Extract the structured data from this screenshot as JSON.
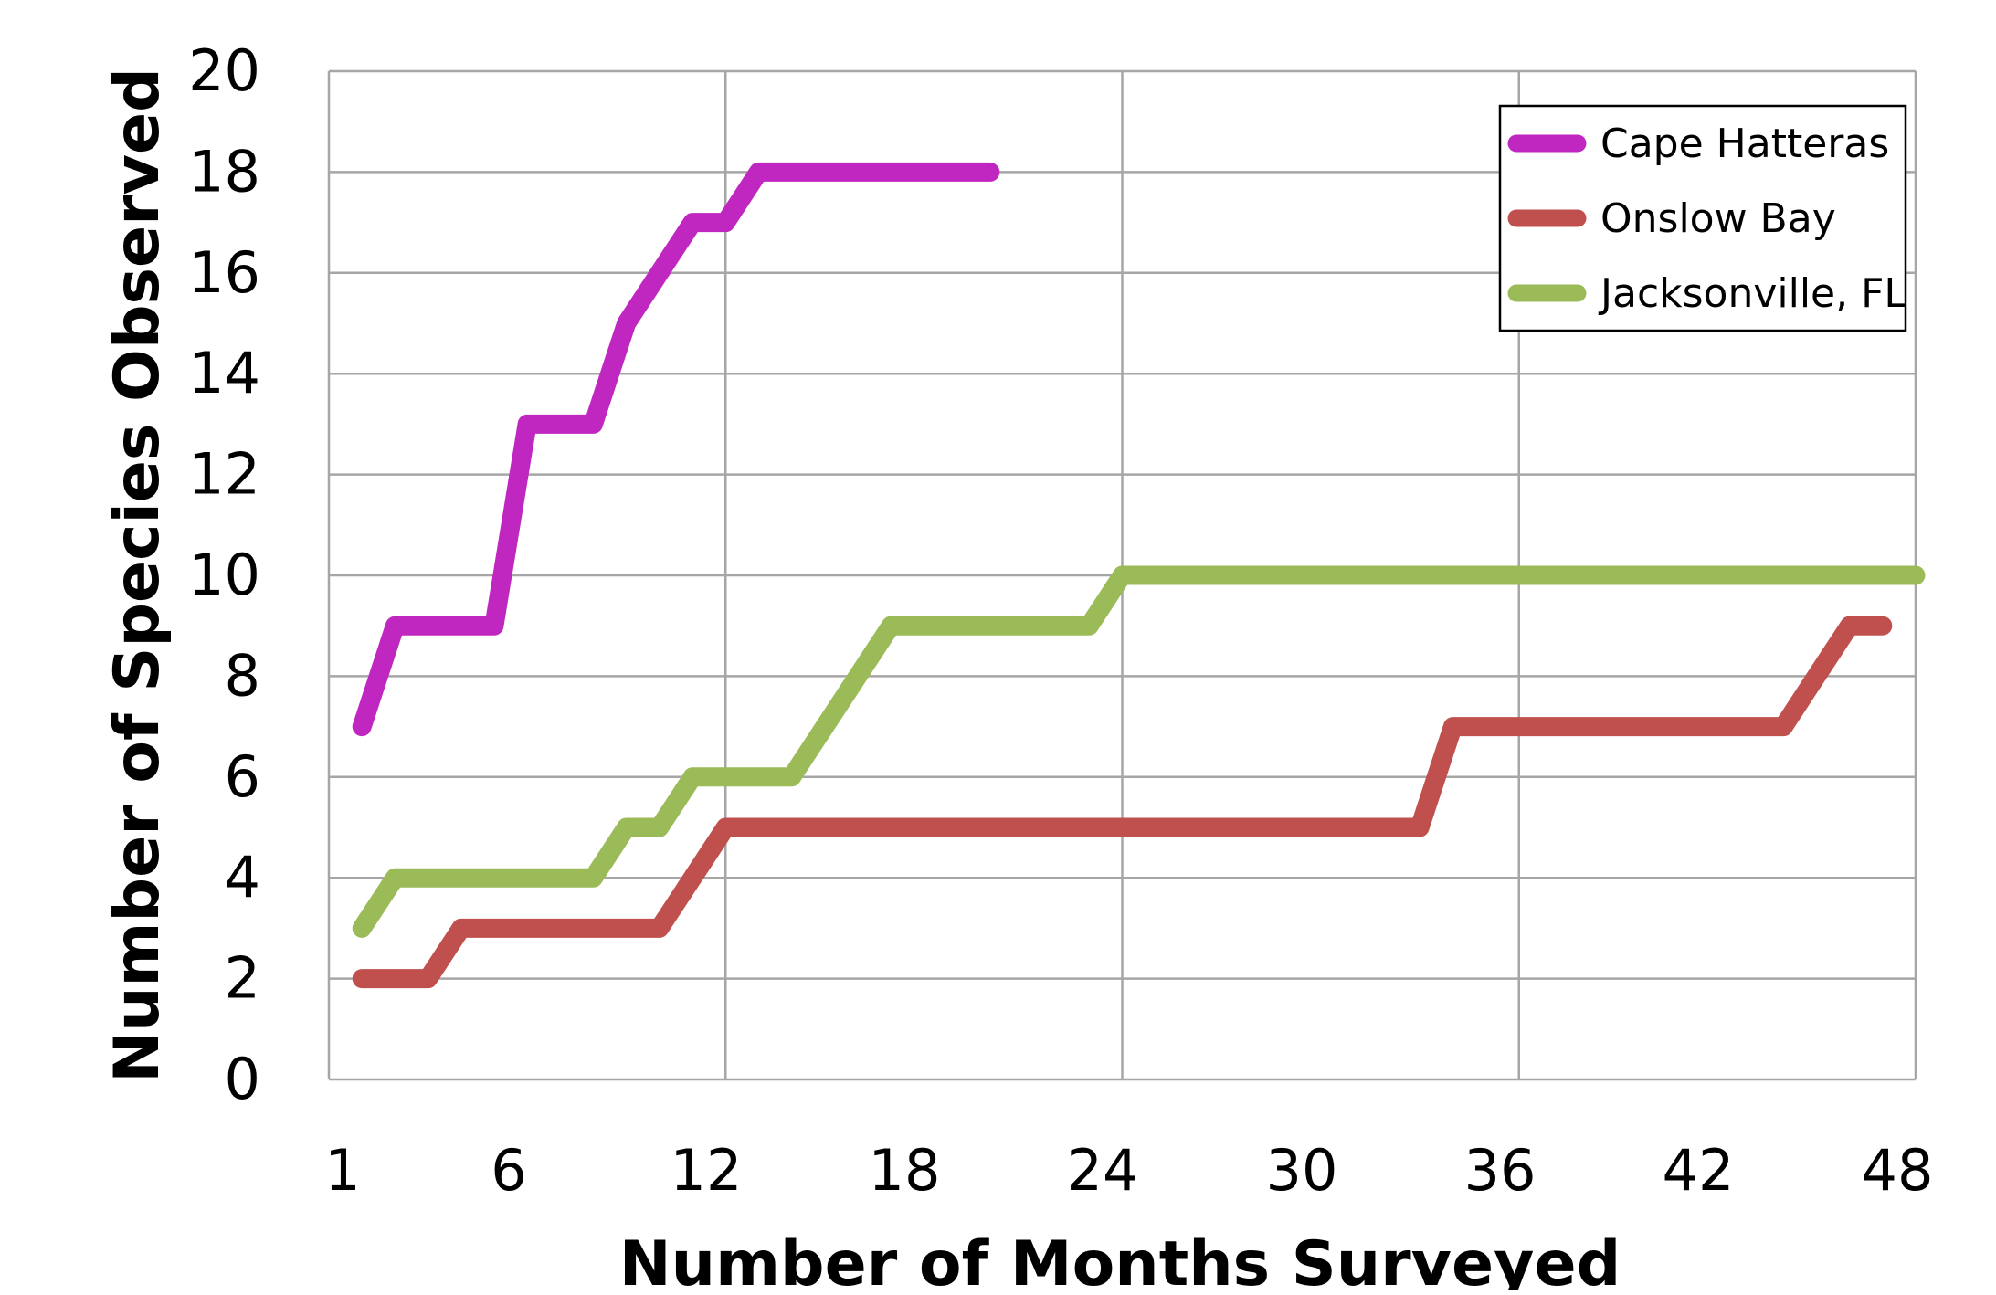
{
  "chart_data": {
    "type": "line",
    "title": "",
    "xlabel": "Number of Months Surveyed",
    "ylabel": "Number of Species Observed",
    "xlim": [
      0,
      48
    ],
    "ylim": [
      0,
      20
    ],
    "x_ticks": [
      1,
      6,
      12,
      18,
      24,
      30,
      36,
      42,
      48
    ],
    "y_ticks": [
      0,
      2,
      4,
      6,
      8,
      10,
      12,
      14,
      16,
      18,
      20
    ],
    "x_tick_labels": [
      "1",
      "6",
      "12",
      "18",
      "24",
      "30",
      "36",
      "42",
      "48"
    ],
    "y_tick_labels": [
      "0",
      "2",
      "4",
      "6",
      "8",
      "10",
      "12",
      "14",
      "16",
      "18",
      "20"
    ],
    "grid": true,
    "legend_position": "top-right",
    "series": [
      {
        "name": "Cape Hatteras",
        "color": "#c026c0",
        "x": [
          1,
          2,
          3,
          4,
          5,
          6,
          7,
          8,
          9,
          10,
          11,
          12,
          13,
          14,
          15,
          16,
          17,
          18,
          19,
          20
        ],
        "y": [
          7,
          9,
          9,
          9,
          9,
          13,
          13,
          13,
          15,
          16,
          17,
          17,
          18,
          18,
          18,
          18,
          18,
          18,
          18,
          18
        ]
      },
      {
        "name": "Onslow Bay",
        "color": "#c0504d",
        "x": [
          1,
          2,
          3,
          4,
          5,
          6,
          7,
          8,
          9,
          10,
          11,
          12,
          13,
          14,
          15,
          16,
          17,
          18,
          19,
          20,
          21,
          22,
          23,
          24,
          25,
          26,
          27,
          28,
          29,
          30,
          31,
          32,
          33,
          34,
          35,
          36,
          37,
          38,
          39,
          40,
          41,
          42,
          43,
          44,
          45,
          46,
          47
        ],
        "y": [
          2,
          2,
          2,
          3,
          3,
          3,
          3,
          3,
          3,
          3,
          4,
          5,
          5,
          5,
          5,
          5,
          5,
          5,
          5,
          5,
          5,
          5,
          5,
          5,
          5,
          5,
          5,
          5,
          5,
          5,
          5,
          5,
          5,
          7,
          7,
          7,
          7,
          7,
          7,
          7,
          7,
          7,
          7,
          7,
          8,
          9,
          9
        ]
      },
      {
        "name": "Jacksonville, FL",
        "color": "#9bbb59",
        "x": [
          1,
          2,
          3,
          4,
          5,
          6,
          7,
          8,
          9,
          10,
          11,
          12,
          13,
          14,
          15,
          16,
          17,
          18,
          19,
          20,
          21,
          22,
          23,
          24,
          25,
          26,
          27,
          28,
          29,
          30,
          31,
          32,
          33,
          34,
          35,
          36,
          37,
          38,
          39,
          40,
          41,
          42,
          43,
          44,
          45,
          46,
          47,
          48
        ],
        "y": [
          3,
          4,
          4,
          4,
          4,
          4,
          4,
          4,
          5,
          5,
          6,
          6,
          6,
          6,
          7,
          8,
          9,
          9,
          9,
          9,
          9,
          9,
          9,
          10,
          10,
          10,
          10,
          10,
          10,
          10,
          10,
          10,
          10,
          10,
          10,
          10,
          10,
          10,
          10,
          10,
          10,
          10,
          10,
          10,
          10,
          10,
          10,
          10
        ]
      }
    ]
  }
}
